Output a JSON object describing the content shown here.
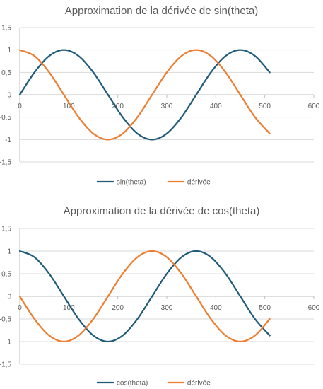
{
  "chart_data": [
    {
      "type": "line",
      "title": "Approximation de la dérivée de sin(theta)",
      "xlabel": "",
      "ylabel": "",
      "xlim": [
        0,
        600
      ],
      "ylim": [
        -1.5,
        1.5
      ],
      "x_ticks": [
        0,
        100,
        200,
        300,
        400,
        500,
        600
      ],
      "y_ticks": [
        1.5,
        1,
        0.5,
        0,
        -0.5,
        -1,
        -1.5
      ],
      "x_tick_labels": [
        "0",
        "100",
        "200",
        "300",
        "400",
        "500",
        "600"
      ],
      "y_tick_labels": [
        "1,5",
        "1",
        "0,5",
        "0",
        "-0,5",
        "-1",
        "-1,5"
      ],
      "grid": true,
      "legend_position": "bottom",
      "series": [
        {
          "name": "sin(theta)",
          "color": "#1f5c7a",
          "x": [
            0,
            30,
            60,
            90,
            120,
            150,
            180,
            210,
            240,
            270,
            300,
            330,
            360,
            390,
            420,
            450,
            480,
            510
          ],
          "y": [
            0,
            0.5,
            0.866,
            1,
            0.866,
            0.5,
            0,
            -0.5,
            -0.866,
            -1,
            -0.866,
            -0.5,
            0,
            0.5,
            0.866,
            1,
            0.866,
            0.5
          ]
        },
        {
          "name": "dérivée",
          "color": "#ed7d31",
          "x": [
            0,
            30,
            60,
            90,
            120,
            150,
            180,
            210,
            240,
            270,
            300,
            330,
            360,
            390,
            420,
            450,
            480,
            510
          ],
          "y": [
            1,
            0.866,
            0.5,
            0,
            -0.5,
            -0.866,
            -1,
            -0.866,
            -0.5,
            0,
            0.5,
            0.866,
            1,
            0.866,
            0.5,
            0,
            -0.5,
            -0.866
          ]
        }
      ]
    },
    {
      "type": "line",
      "title": "Approximation de la dérivée de cos(theta)",
      "xlabel": "",
      "ylabel": "",
      "xlim": [
        0,
        600
      ],
      "ylim": [
        -1.5,
        1.5
      ],
      "x_ticks": [
        0,
        100,
        200,
        300,
        400,
        500,
        600
      ],
      "y_ticks": [
        1.5,
        1,
        0.5,
        0,
        -0.5,
        -1,
        -1.5
      ],
      "x_tick_labels": [
        "0",
        "100",
        "200",
        "300",
        "400",
        "500",
        "600"
      ],
      "y_tick_labels": [
        "1,5",
        "1",
        "0,5",
        "0",
        "-0,5",
        "-1",
        "-1,5"
      ],
      "grid": true,
      "legend_position": "bottom",
      "series": [
        {
          "name": "cos(theta)",
          "color": "#1f5c7a",
          "x": [
            0,
            30,
            60,
            90,
            120,
            150,
            180,
            210,
            240,
            270,
            300,
            330,
            360,
            390,
            420,
            450,
            480,
            510
          ],
          "y": [
            1,
            0.866,
            0.5,
            0,
            -0.5,
            -0.866,
            -1,
            -0.866,
            -0.5,
            0,
            0.5,
            0.866,
            1,
            0.866,
            0.5,
            0,
            -0.5,
            -0.866
          ]
        },
        {
          "name": "dérivée",
          "color": "#ed7d31",
          "x": [
            0,
            30,
            60,
            90,
            120,
            150,
            180,
            210,
            240,
            270,
            300,
            330,
            360,
            390,
            420,
            450,
            480,
            510
          ],
          "y": [
            0,
            -0.5,
            -0.866,
            -1,
            -0.866,
            -0.5,
            0,
            0.5,
            0.866,
            1,
            0.866,
            0.5,
            0,
            -0.5,
            -0.866,
            -1,
            -0.866,
            -0.5
          ]
        }
      ]
    }
  ]
}
